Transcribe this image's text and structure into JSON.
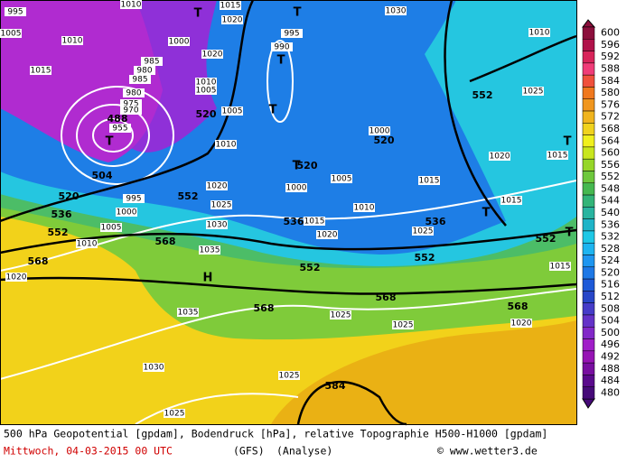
{
  "footer": {
    "line1": "500 hPa Geopotential [gpdam], Bodendruck [hPa], relative Topographie H500-H1000 [gpdam]",
    "date": "Mittwoch, 04-03-2015  00 UTC",
    "model": "(GFS)",
    "run": "(Analyse)",
    "credit": "© www.wetter3.de"
  },
  "colorbar": [
    600,
    596,
    592,
    588,
    584,
    580,
    576,
    572,
    568,
    564,
    560,
    556,
    552,
    548,
    544,
    540,
    536,
    532,
    528,
    524,
    520,
    516,
    512,
    508,
    504,
    500,
    496,
    492,
    488,
    484,
    480
  ],
  "pressure_labels": [
    "1010",
    "1015",
    "1020",
    "1005",
    "995",
    "1010",
    "1000",
    "1020",
    "1015",
    "1030",
    "1010",
    "1025",
    "995",
    "990",
    "985",
    "980",
    "985",
    "980",
    "975",
    "970",
    "955",
    "1010",
    "1005",
    "1005",
    "1010",
    "1000",
    "1005",
    "1000",
    "1010",
    "1015",
    "1020",
    "1015",
    "1015",
    "995",
    "1000",
    "1005",
    "1010",
    "1020",
    "1025",
    "1030",
    "1015",
    "1020",
    "1025",
    "1035",
    "1020",
    "1035",
    "1025",
    "1025",
    "1020",
    "1015",
    "1030",
    "1025",
    "1025"
  ],
  "geopotential_labels": [
    "488",
    "520",
    "520",
    "520",
    "504",
    "520",
    "536",
    "552",
    "552",
    "536",
    "536",
    "568",
    "568",
    "552",
    "552",
    "552",
    "552",
    "568",
    "568",
    "568",
    "584"
  ],
  "pressure_systems": [
    "T",
    "T",
    "T",
    "T",
    "T",
    "T",
    "T",
    "T",
    "T",
    "H"
  ]
}
